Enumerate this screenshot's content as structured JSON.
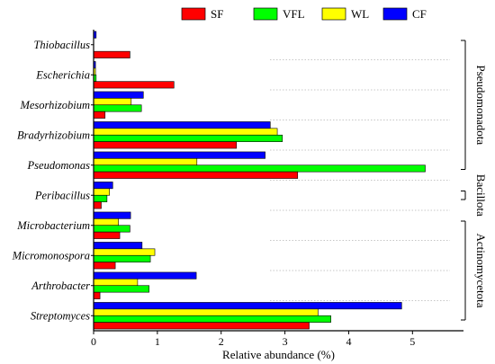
{
  "chart_data": {
    "type": "bar",
    "orientation": "horizontal",
    "xlabel": "Relative abundance (%)",
    "xlim": [
      0,
      5.8
    ],
    "xticks": [
      0,
      1,
      2,
      3,
      4,
      5
    ],
    "grid": false,
    "legend_position": "top-right",
    "categories": [
      "Thiobacillus",
      "Escherichia",
      "Mesorhizobium",
      "Bradyrhizobium",
      "Pseudomonas",
      "Peribacillus",
      "Microbacterium",
      "Micromonospora",
      "Arthrobacter",
      "Streptomyces"
    ],
    "series": [
      {
        "name": "SF",
        "color": "#ff0000",
        "values": [
          0.57,
          1.26,
          0.18,
          2.24,
          3.2,
          0.12,
          0.41,
          0.34,
          0.1,
          3.38
        ]
      },
      {
        "name": "VFL",
        "color": "#00ff00",
        "values": [
          0.0,
          0.04,
          0.75,
          2.96,
          5.2,
          0.21,
          0.57,
          0.89,
          0.87,
          3.72
        ]
      },
      {
        "name": "WL",
        "color": "#ffff00",
        "values": [
          0.0,
          0.03,
          0.59,
          2.88,
          1.62,
          0.25,
          0.39,
          0.96,
          0.69,
          3.52
        ]
      },
      {
        "name": "CF",
        "color": "#0000ff",
        "values": [
          0.04,
          0.03,
          0.78,
          2.77,
          2.69,
          0.3,
          0.58,
          0.76,
          1.61,
          4.83
        ]
      }
    ],
    "groups": [
      {
        "name": "Pseudomonadota",
        "categories": [
          "Thiobacillus",
          "Escherichia",
          "Mesorhizobium",
          "Bradyrhizobium",
          "Pseudomonas"
        ]
      },
      {
        "name": "Bacillota",
        "categories": [
          "Peribacillus"
        ]
      },
      {
        "name": "Actinomycetota",
        "categories": [
          "Microbacterium",
          "Micromonospora",
          "Arthrobacter",
          "Streptomyces"
        ]
      }
    ]
  }
}
